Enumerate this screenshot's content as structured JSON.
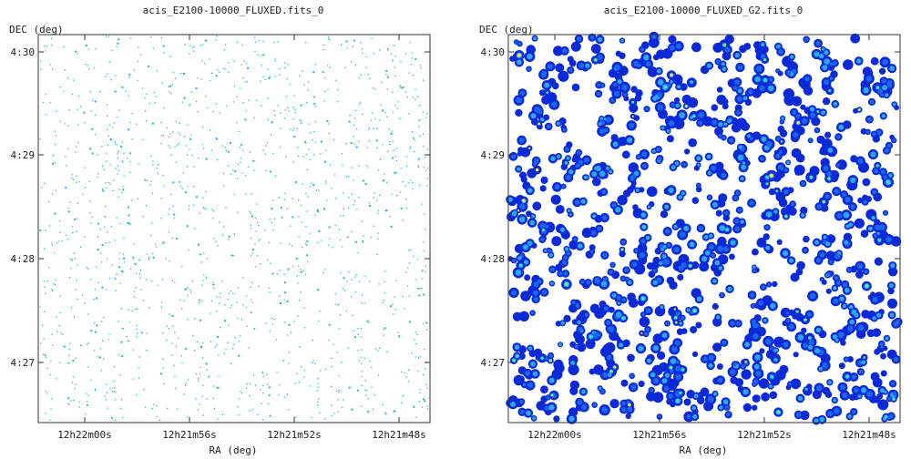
{
  "chart_data": [
    {
      "type": "scatter",
      "title": "acis_E2100-10000_FLUXED.fits_0",
      "xlabel": "RA (deg)",
      "ylabel": "DEC (deg)",
      "x_ticks": [
        "12h22m00s",
        "12h21m56s",
        "12h21m52s",
        "12h21m48s"
      ],
      "y_ticks": [
        "4:30",
        "4:29",
        "4:28",
        "4:27"
      ],
      "grid": false,
      "image": {
        "style": "sparse",
        "background": "#ffffff",
        "colormap": [
          "#1fb8c8",
          "#27c39a",
          "#3fd16a"
        ],
        "note_levels": "single photon-event pixels"
      }
    },
    {
      "type": "scatter",
      "title": "acis_E2100-10000_FLUXED_G2.fits_0",
      "xlabel": "RA (deg)",
      "ylabel": "DEC (deg)",
      "x_ticks": [
        "12h22m00s",
        "12h21m56s",
        "12h21m52s",
        "12h21m48s"
      ],
      "y_ticks": [
        "4:30",
        "4:29",
        "4:28",
        "4:27"
      ],
      "grid": false,
      "image": {
        "style": "smoothed",
        "background": "#ffffff",
        "colormap": [
          "#0a2ad8",
          "#1a66f0",
          "#2aa8f5",
          "#2fe0d8",
          "#5af08a",
          "#f5e83a"
        ]
      }
    }
  ]
}
